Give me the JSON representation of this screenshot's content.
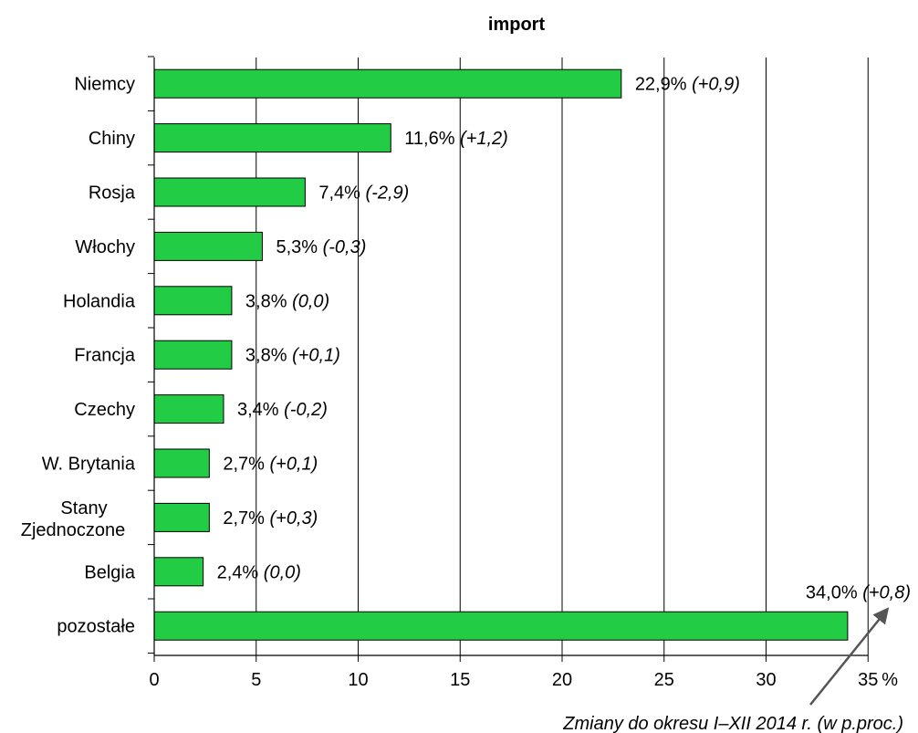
{
  "chart_data": {
    "type": "bar",
    "orientation": "horizontal",
    "title": "import",
    "categories": [
      "Niemcy",
      "Chiny",
      "Rosja",
      "Włochy",
      "Holandia",
      "Francja",
      "Czechy",
      "W. Brytania",
      "Stany Zjednoczone",
      "Belgia",
      "pozostałe"
    ],
    "values": [
      22.9,
      11.6,
      7.4,
      5.3,
      3.8,
      3.8,
      3.4,
      2.7,
      2.7,
      2.4,
      34.0
    ],
    "value_labels": [
      "22,9%",
      "11,6%",
      "7,4%",
      "5,3%",
      "3,8%",
      "3,8%",
      "3,4%",
      "2,7%",
      "2,7%",
      "2,4%",
      "34,0%"
    ],
    "change_labels": [
      "(+0,9)",
      "(+1,2)",
      "(-2,9)",
      "(-0,3)",
      "(0,0)",
      "(+0,1)",
      "(-0,2)",
      "(+0,1)",
      "(+0,3)",
      "(0,0)",
      "(+0,8)"
    ],
    "x_ticks": [
      "0",
      "5",
      "10",
      "15",
      "20",
      "25",
      "30",
      "35"
    ],
    "x_unit": "%",
    "xlim": [
      0,
      35
    ],
    "grid": "vertical",
    "bar_color": "#22cc44",
    "annotation": "Zmiany do okresu I–XII 2014 r. (w p.proc.)"
  }
}
